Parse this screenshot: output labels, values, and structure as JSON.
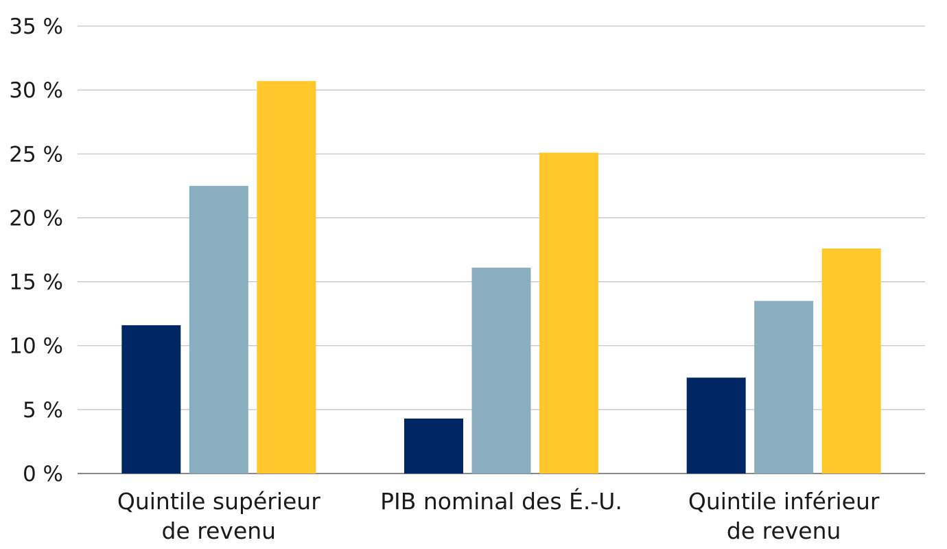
{
  "chart_data": {
    "type": "bar",
    "title": "",
    "xlabel": "",
    "ylabel": "",
    "categories": [
      [
        "Quintile supérieur",
        "de revenu"
      ],
      [
        "PIB nominal des É.-U."
      ],
      [
        "Quintile inférieur",
        "de revenu"
      ]
    ],
    "series": [
      {
        "values": [
          11.6,
          4.3,
          7.5
        ],
        "color": "#002664"
      },
      {
        "values": [
          22.5,
          16.1,
          13.5
        ],
        "color": "#8aaebf"
      },
      {
        "values": [
          30.7,
          25.1,
          17.6
        ],
        "color": "#ffc72c"
      }
    ],
    "ylim": [
      0,
      35
    ],
    "yticks": [
      0,
      5,
      10,
      15,
      20,
      25,
      30,
      35
    ],
    "ytick_labels": [
      "0 %",
      "5 %",
      "10 %",
      "15 %",
      "20 %",
      "25 %",
      "30 %",
      "35 %"
    ],
    "grid": true,
    "legend": "none"
  }
}
